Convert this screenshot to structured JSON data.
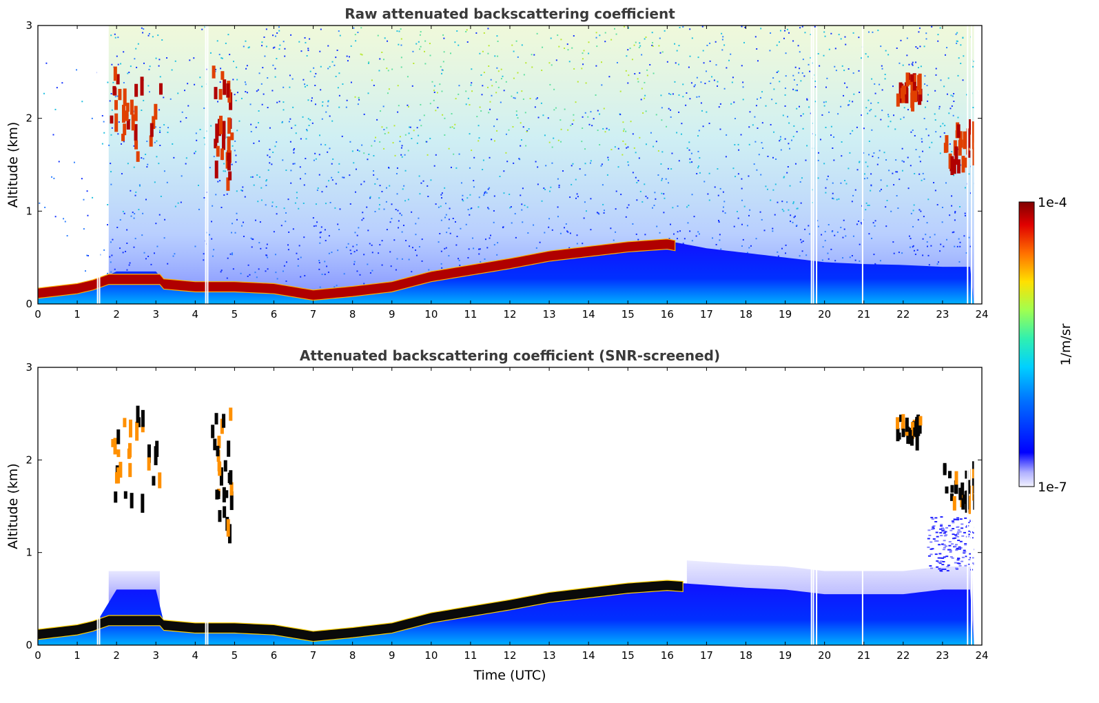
{
  "chart_data": [
    {
      "type": "heatmap",
      "title": "Raw attenuated backscattering coefficient",
      "xlabel": "",
      "ylabel": "Altitude (km)",
      "xlim": [
        0,
        24
      ],
      "ylim": [
        0,
        3
      ],
      "xticks": [
        "0",
        "1",
        "2",
        "3",
        "4",
        "5",
        "6",
        "7",
        "8",
        "9",
        "10",
        "11",
        "12",
        "13",
        "14",
        "15",
        "16",
        "17",
        "18",
        "19",
        "20",
        "21",
        "22",
        "23",
        "24"
      ],
      "yticks": [
        "0",
        "1",
        "2",
        "3"
      ],
      "aerosol_layer_top_km": {
        "x": [
          0,
          1,
          1.5,
          2,
          3,
          3.2,
          4,
          5,
          6,
          7,
          7.5,
          8,
          9,
          10,
          11,
          12,
          13,
          14,
          15,
          16,
          17,
          18,
          19,
          20,
          21,
          22,
          23,
          23.8
        ],
        "y": [
          0.15,
          0.2,
          0.25,
          0.35,
          0.35,
          0.25,
          0.22,
          0.22,
          0.2,
          0.13,
          0.15,
          0.17,
          0.22,
          0.33,
          0.4,
          0.47,
          0.55,
          0.6,
          0.65,
          0.68,
          0.6,
          0.55,
          0.5,
          0.45,
          0.43,
          0.42,
          0.4,
          0.4
        ]
      },
      "clouds": [
        {
          "x": [
            1.8,
            3.1
          ],
          "y": [
            1.6,
            2.6
          ]
        },
        {
          "x": [
            4.4,
            4.9
          ],
          "y": [
            1.3,
            2.6
          ]
        },
        {
          "x": [
            21.8,
            22.4
          ],
          "y": [
            2.25,
            2.5
          ]
        },
        {
          "x": [
            23.0,
            23.8
          ],
          "y": [
            1.55,
            2.0
          ]
        }
      ]
    },
    {
      "type": "heatmap",
      "title": "Attenuated backscattering coefficient (SNR-screened)",
      "xlabel": "Time (UTC)",
      "ylabel": "Altitude (km)",
      "xlim": [
        0,
        24
      ],
      "ylim": [
        0,
        3
      ],
      "xticks": [
        "0",
        "1",
        "2",
        "3",
        "4",
        "5",
        "6",
        "7",
        "8",
        "9",
        "10",
        "11",
        "12",
        "13",
        "14",
        "15",
        "16",
        "17",
        "18",
        "19",
        "20",
        "21",
        "22",
        "23",
        "24"
      ],
      "yticks": [
        "0",
        "1",
        "2",
        "3"
      ],
      "aerosol_layer_top_km": {
        "x": [
          0,
          1,
          1.5,
          2,
          3,
          3.2,
          4,
          5,
          6,
          7,
          7.5,
          8,
          9,
          10,
          11,
          12,
          13,
          14,
          15,
          16,
          17,
          18,
          19,
          20,
          21,
          22,
          23,
          23.8
        ],
        "y": [
          0.15,
          0.2,
          0.25,
          0.6,
          0.6,
          0.25,
          0.22,
          0.22,
          0.2,
          0.13,
          0.15,
          0.17,
          0.22,
          0.33,
          0.4,
          0.47,
          0.55,
          0.6,
          0.65,
          0.68,
          0.65,
          0.62,
          0.6,
          0.55,
          0.55,
          0.55,
          0.6,
          0.6
        ]
      },
      "clouds": [
        {
          "x": [
            1.8,
            3.1
          ],
          "y": [
            1.6,
            2.6
          ]
        },
        {
          "x": [
            4.4,
            4.9
          ],
          "y": [
            1.3,
            2.6
          ]
        },
        {
          "x": [
            21.8,
            22.4
          ],
          "y": [
            2.25,
            2.5
          ]
        },
        {
          "x": [
            23.0,
            23.8
          ],
          "y": [
            1.55,
            2.0
          ]
        }
      ]
    }
  ],
  "colorbar": {
    "label": "1/m/sr",
    "max_label": "1e-4",
    "min_label": "1e-7",
    "scale": "log",
    "range": [
      1e-07,
      0.0001
    ],
    "colormap": "jet"
  }
}
